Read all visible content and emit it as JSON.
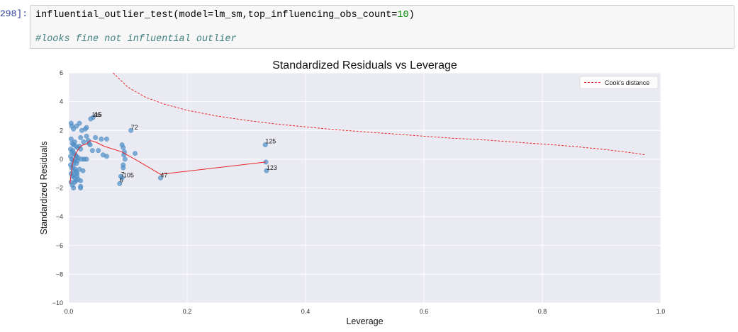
{
  "cell": {
    "prompt": "298]:",
    "code_pre": "influential_outlier_test(model=lm_sm,top_influencing_obs_count=",
    "code_num": "10",
    "code_post": ")",
    "comment": "#looks fine not influential outlier"
  },
  "chart_data": {
    "type": "scatter",
    "title": "Standardized Residuals vs Leverage",
    "xlabel": "Leverage",
    "ylabel": "Standardized Residuals",
    "xlim": [
      0.0,
      1.0
    ],
    "ylim": [
      -10,
      6
    ],
    "xticks": [
      0.0,
      0.2,
      0.4,
      0.6,
      0.8,
      1.0
    ],
    "xtick_labels": [
      "0.0",
      "0.2",
      "0.4",
      "0.6",
      "0.8",
      "1.0"
    ],
    "yticks": [
      -10,
      -8,
      -6,
      -4,
      -2,
      0,
      2,
      4,
      6
    ],
    "ytick_labels": [
      "−10",
      "−8",
      "−6",
      "−4",
      "−2",
      "0",
      "2",
      "4",
      "6"
    ],
    "grid": true,
    "legend": {
      "position": "top-right",
      "entries": [
        "Cook's distance"
      ]
    },
    "colors": {
      "points": "#4e8fc7",
      "lowess": "#e8282b",
      "cooks": "#e8282b",
      "background": "#eaeaf2"
    },
    "points": [
      [
        0.004,
        2.5
      ],
      [
        0.005,
        2.3
      ],
      [
        0.008,
        2.1
      ],
      [
        0.013,
        2.3
      ],
      [
        0.018,
        2.5
      ],
      [
        0.022,
        2.0
      ],
      [
        0.028,
        2.1
      ],
      [
        0.03,
        2.2
      ],
      [
        0.02,
        1.5
      ],
      [
        0.025,
        1.2
      ],
      [
        0.03,
        1.6
      ],
      [
        0.033,
        1.3
      ],
      [
        0.034,
        1.1
      ],
      [
        0.036,
        1.0
      ],
      [
        0.045,
        1.5
      ],
      [
        0.055,
        1.4
      ],
      [
        0.064,
        1.4
      ],
      [
        0.004,
        1.4
      ],
      [
        0.006,
        1.1
      ],
      [
        0.008,
        1.0
      ],
      [
        0.01,
        1.2
      ],
      [
        0.012,
        0.9
      ],
      [
        0.015,
        0.8
      ],
      [
        0.018,
        0.9
      ],
      [
        0.02,
        0.7
      ],
      [
        0.003,
        0.7
      ],
      [
        0.005,
        0.5
      ],
      [
        0.007,
        0.6
      ],
      [
        0.009,
        0.4
      ],
      [
        0.011,
        0.3
      ],
      [
        0.013,
        0.2
      ],
      [
        0.016,
        0.1
      ],
      [
        0.003,
        0.2
      ],
      [
        0.005,
        0.0
      ],
      [
        0.007,
        -0.1
      ],
      [
        0.009,
        -0.2
      ],
      [
        0.011,
        0.0
      ],
      [
        0.013,
        -0.3
      ],
      [
        0.015,
        -0.1
      ],
      [
        0.003,
        -0.4
      ],
      [
        0.005,
        -0.6
      ],
      [
        0.007,
        -0.5
      ],
      [
        0.009,
        -0.8
      ],
      [
        0.011,
        -0.7
      ],
      [
        0.013,
        -0.9
      ],
      [
        0.004,
        -1.0
      ],
      [
        0.006,
        -1.2
      ],
      [
        0.008,
        -1.1
      ],
      [
        0.01,
        -1.3
      ],
      [
        0.012,
        -1.5
      ],
      [
        0.014,
        -1.0
      ],
      [
        0.004,
        -1.6
      ],
      [
        0.006,
        -1.8
      ],
      [
        0.008,
        -2.0
      ],
      [
        0.02,
        -1.9
      ],
      [
        0.02,
        -2.0
      ],
      [
        0.01,
        -1.6
      ],
      [
        0.022,
        0.0
      ],
      [
        0.026,
        0.0
      ],
      [
        0.03,
        0.0
      ],
      [
        0.04,
        0.6
      ],
      [
        0.05,
        0.6
      ],
      [
        0.058,
        0.3
      ],
      [
        0.064,
        0.2
      ],
      [
        0.024,
        -0.8
      ],
      [
        0.016,
        -1.4
      ],
      [
        0.02,
        -1.5
      ],
      [
        0.014,
        -1.2
      ],
      [
        0.018,
        -0.7
      ],
      [
        0.088,
        -1.2
      ],
      [
        0.09,
        -1.3
      ],
      [
        0.086,
        -1.7
      ],
      [
        0.092,
        -0.4
      ],
      [
        0.092,
        -0.6
      ],
      [
        0.09,
        1.0
      ],
      [
        0.092,
        0.8
      ],
      [
        0.094,
        0.5
      ],
      [
        0.093,
        0.3
      ],
      [
        0.095,
        0.0
      ],
      [
        0.112,
        0.4
      ],
      [
        0.037,
        2.8
      ],
      [
        0.041,
        2.9
      ],
      [
        0.105,
        2.0
      ],
      [
        0.155,
        -1.3
      ],
      [
        0.332,
        1.0
      ],
      [
        0.333,
        -0.2
      ],
      [
        0.334,
        -0.8
      ]
    ],
    "annotations": [
      {
        "x": 0.039,
        "y": 2.95,
        "text": "115"
      },
      {
        "x": 0.042,
        "y": 2.95,
        "text": "46"
      },
      {
        "x": 0.105,
        "y": 2.05,
        "text": "72"
      },
      {
        "x": 0.332,
        "y": 1.1,
        "text": "125"
      },
      {
        "x": 0.334,
        "y": -0.75,
        "text": "123"
      },
      {
        "x": 0.155,
        "y": -1.25,
        "text": "47"
      },
      {
        "x": 0.088,
        "y": -1.2,
        "text": "7"
      },
      {
        "x": 0.092,
        "y": -1.25,
        "text": "105"
      },
      {
        "x": 0.086,
        "y": -1.6,
        "text": "6"
      }
    ],
    "lowess": [
      [
        0.002,
        -1.7
      ],
      [
        0.004,
        -1.0
      ],
      [
        0.006,
        -0.4
      ],
      [
        0.008,
        0.0
      ],
      [
        0.012,
        0.4
      ],
      [
        0.018,
        0.8
      ],
      [
        0.024,
        1.0
      ],
      [
        0.03,
        1.05
      ],
      [
        0.036,
        1.3
      ],
      [
        0.045,
        1.2
      ],
      [
        0.06,
        0.9
      ],
      [
        0.09,
        0.5
      ],
      [
        0.12,
        -0.2
      ],
      [
        0.155,
        -1.05
      ],
      [
        0.333,
        -0.2
      ]
    ],
    "cooks_distance": [
      [
        0.075,
        6.0
      ],
      [
        0.1,
        5.0
      ],
      [
        0.13,
        4.3
      ],
      [
        0.16,
        3.85
      ],
      [
        0.2,
        3.4
      ],
      [
        0.25,
        3.0
      ],
      [
        0.3,
        2.7
      ],
      [
        0.35,
        2.45
      ],
      [
        0.4,
        2.25
      ],
      [
        0.45,
        2.05
      ],
      [
        0.5,
        1.9
      ],
      [
        0.55,
        1.75
      ],
      [
        0.6,
        1.6
      ],
      [
        0.65,
        1.45
      ],
      [
        0.7,
        1.35
      ],
      [
        0.75,
        1.2
      ],
      [
        0.8,
        1.05
      ],
      [
        0.85,
        0.9
      ],
      [
        0.9,
        0.7
      ],
      [
        0.95,
        0.45
      ],
      [
        0.975,
        0.3
      ]
    ]
  }
}
